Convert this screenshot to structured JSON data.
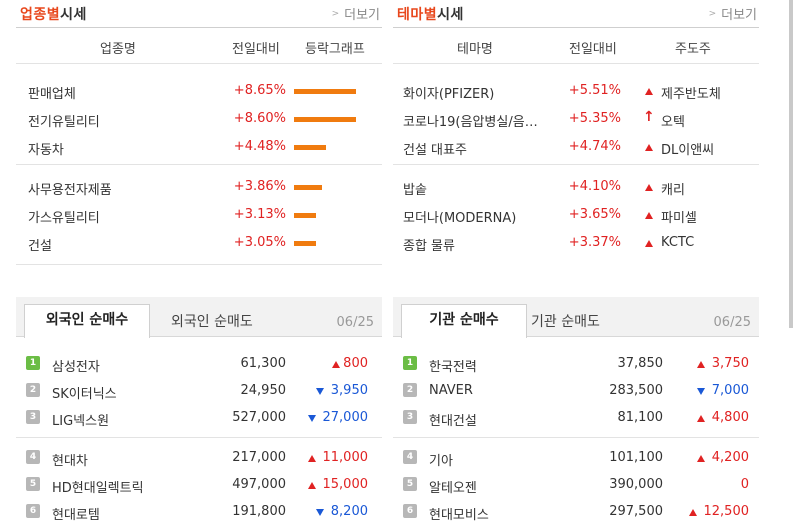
{
  "industry": {
    "title_hl": "업종별",
    "title_rest": "시세",
    "more_label": "더보기",
    "headers": {
      "name": "업종명",
      "change": "전일대비",
      "graph": "등락그래프"
    },
    "rows": [
      {
        "name": "판매업체",
        "change": "+8.65%",
        "pct": 8.65
      },
      {
        "name": "전기유틸리티",
        "change": "+8.60%",
        "pct": 8.6
      },
      {
        "name": "자동차",
        "change": "+4.48%",
        "pct": 4.48
      },
      {
        "name": "사무용전자제품",
        "change": "+3.86%",
        "pct": 3.86
      },
      {
        "name": "가스유틸리티",
        "change": "+3.13%",
        "pct": 3.13
      },
      {
        "name": "건설",
        "change": "+3.05%",
        "pct": 3.05
      }
    ]
  },
  "theme": {
    "title_hl": "테마별",
    "title_rest": "시세",
    "more_label": "더보기",
    "headers": {
      "name": "테마명",
      "change": "전일대비",
      "lead": "주도주"
    },
    "rows": [
      {
        "name": "화이자(PFIZER)",
        "change": "+5.51%",
        "lead": "제주반도체"
      },
      {
        "name": "코로나19(음압병실/음압...",
        "change": "+5.35%",
        "lead": "오텍"
      },
      {
        "name": "건설 대표주",
        "change": "+4.74%",
        "lead": "DL이앤씨"
      },
      {
        "name": "밥솥",
        "change": "+4.10%",
        "lead": "캐리"
      },
      {
        "name": "모더나(MODERNA)",
        "change": "+3.65%",
        "lead": "파미셀"
      },
      {
        "name": "종합 물류",
        "change": "+3.37%",
        "lead": "KCTC"
      }
    ]
  },
  "foreign": {
    "tab_active": "외국인 순매수",
    "tab_inactive": "외국인 순매도",
    "date": "06/25",
    "rows": [
      {
        "rank": "1",
        "name": "삼성전자",
        "price": "61,300",
        "change": "800",
        "dir": "up"
      },
      {
        "rank": "2",
        "name": "SK이터닉스",
        "price": "24,950",
        "change": "3,950",
        "dir": "down"
      },
      {
        "rank": "3",
        "name": "LIG넥스원",
        "price": "527,000",
        "change": "27,000",
        "dir": "down"
      },
      {
        "rank": "4",
        "name": "현대차",
        "price": "217,000",
        "change": "11,000",
        "dir": "up"
      },
      {
        "rank": "5",
        "name": "HD현대일렉트릭",
        "price": "497,000",
        "change": "15,000",
        "dir": "up"
      },
      {
        "rank": "6",
        "name": "현대로템",
        "price": "191,800",
        "change": "8,200",
        "dir": "down"
      }
    ]
  },
  "institution": {
    "tab_active": "기관 순매수",
    "tab_inactive": "기관 순매도",
    "date": "06/25",
    "rows": [
      {
        "rank": "1",
        "name": "한국전력",
        "price": "37,850",
        "change": "3,750",
        "dir": "up"
      },
      {
        "rank": "2",
        "name": "NAVER",
        "price": "283,500",
        "change": "7,000",
        "dir": "down"
      },
      {
        "rank": "3",
        "name": "현대건설",
        "price": "81,100",
        "change": "4,800",
        "dir": "up"
      },
      {
        "rank": "4",
        "name": "기아",
        "price": "101,100",
        "change": "4,200",
        "dir": "up"
      },
      {
        "rank": "5",
        "name": "알테오젠",
        "price": "390,000",
        "change": "0",
        "dir": "none"
      },
      {
        "rank": "6",
        "name": "현대모비스",
        "price": "297,500",
        "change": "12,500",
        "dir": "up"
      }
    ]
  },
  "colors": {
    "up": "#e02222",
    "down": "#1a58d6",
    "bar": "#f07b0f",
    "title_hl": "#e8471c"
  }
}
